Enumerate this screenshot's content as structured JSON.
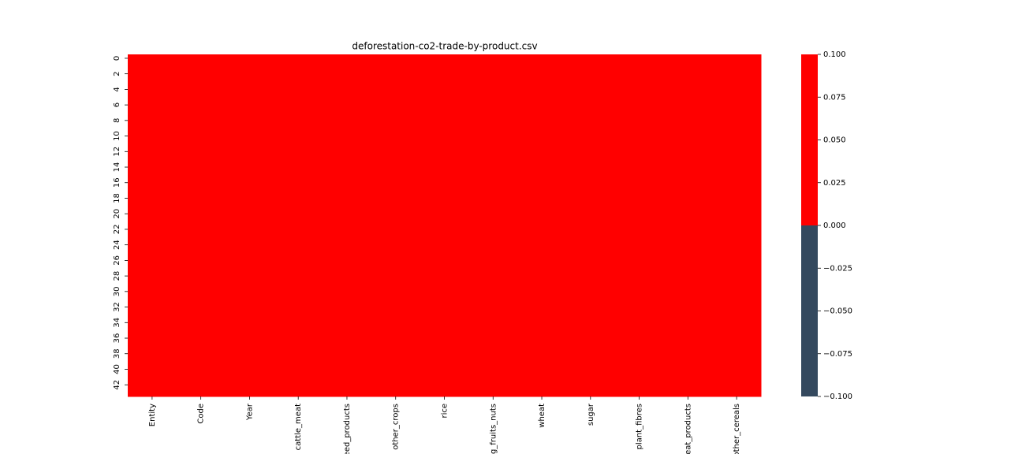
{
  "chart_data": {
    "type": "heatmap",
    "title": "deforestation-co2-trade-by-product.csv",
    "columns": [
      "Entity",
      "Code",
      "Year",
      "cattle_meat",
      "eed_products",
      "other_crops",
      "rice",
      "g_fruits_nuts",
      "wheat",
      "sugar",
      "plant_fibres",
      "eat_products",
      "other_cereals"
    ],
    "rows": [
      0,
      null,
      2,
      null,
      4,
      null,
      6,
      null,
      8,
      null,
      10,
      null,
      12,
      null,
      14,
      null,
      16,
      null,
      18,
      null,
      20,
      null,
      22,
      null,
      24,
      null,
      26,
      null,
      28,
      null,
      30,
      null,
      32,
      null,
      34,
      null,
      36,
      null,
      38,
      null,
      40,
      null,
      42,
      null
    ],
    "values": [
      [
        0,
        0,
        0,
        0,
        0,
        0,
        0,
        0,
        0,
        0,
        0,
        0,
        0
      ],
      [
        0,
        0,
        0,
        0,
        0,
        0,
        0,
        0,
        0,
        0,
        0,
        0,
        0
      ],
      [
        0,
        0,
        0,
        0,
        0,
        0,
        0,
        0,
        0,
        0,
        0,
        0,
        0
      ],
      [
        0,
        0,
        0,
        0,
        0,
        0,
        0,
        0,
        0,
        0,
        0,
        0,
        0
      ],
      [
        0,
        0,
        0,
        0,
        0,
        0,
        0,
        0,
        0,
        0,
        0,
        0,
        0
      ],
      [
        0,
        0,
        0,
        0,
        0,
        0,
        0,
        0,
        0,
        0,
        0,
        0,
        0
      ],
      [
        0,
        0,
        0,
        0,
        0,
        0,
        0,
        0,
        0,
        0,
        0,
        0,
        0
      ],
      [
        0,
        0,
        0,
        0,
        0,
        0,
        0,
        0,
        0,
        0,
        0,
        0,
        0
      ],
      [
        0,
        0,
        0,
        0,
        0,
        0,
        0,
        0,
        0,
        0,
        0,
        0,
        0
      ],
      [
        0,
        0,
        0,
        0,
        0,
        0,
        0,
        0,
        0,
        0,
        0,
        0,
        0
      ],
      [
        0,
        0,
        0,
        0,
        0,
        0,
        0,
        0,
        0,
        0,
        0,
        0,
        0
      ],
      [
        0,
        0,
        0,
        0,
        0,
        0,
        0,
        0,
        0,
        0,
        0,
        0,
        0
      ],
      [
        0,
        0,
        0,
        0,
        0,
        0,
        0,
        0,
        0,
        0,
        0,
        0,
        0
      ],
      [
        0,
        0,
        0,
        0,
        0,
        0,
        0,
        0,
        0,
        0,
        0,
        0,
        0
      ],
      [
        0,
        0,
        0,
        0,
        0,
        0,
        0,
        0,
        0,
        0,
        0,
        0,
        0
      ],
      [
        0,
        0,
        0,
        0,
        0,
        0,
        0,
        0,
        0,
        0,
        0,
        0,
        0
      ],
      [
        0,
        0,
        0,
        0,
        0,
        0,
        0,
        0,
        0,
        0,
        0,
        0,
        0
      ],
      [
        0,
        0,
        0,
        0,
        0,
        0,
        0,
        0,
        0,
        0,
        0,
        0,
        0
      ],
      [
        0,
        0,
        0,
        0,
        0,
        0,
        0,
        0,
        0,
        0,
        0,
        0,
        0
      ],
      [
        0,
        0,
        0,
        0,
        0,
        0,
        0,
        0,
        0,
        0,
        0,
        0,
        0
      ],
      [
        0,
        0,
        0,
        0,
        0,
        0,
        0,
        0,
        0,
        0,
        0,
        0,
        0
      ],
      [
        0,
        0,
        0,
        0,
        0,
        0,
        0,
        0,
        0,
        0,
        0,
        0,
        0
      ],
      [
        0,
        0,
        0,
        0,
        0,
        0,
        0,
        0,
        0,
        0,
        0,
        0,
        0
      ],
      [
        0,
        0,
        0,
        0,
        0,
        0,
        0,
        0,
        0,
        0,
        0,
        0,
        0
      ],
      [
        0,
        0,
        0,
        0,
        0,
        0,
        0,
        0,
        0,
        0,
        0,
        0,
        0
      ],
      [
        0,
        0,
        0,
        0,
        0,
        0,
        0,
        0,
        0,
        0,
        0,
        0,
        0
      ],
      [
        0,
        0,
        0,
        0,
        0,
        0,
        0,
        0,
        0,
        0,
        0,
        0,
        0
      ],
      [
        0,
        0,
        0,
        0,
        0,
        0,
        0,
        0,
        0,
        0,
        0,
        0,
        0
      ],
      [
        0,
        0,
        0,
        0,
        0,
        0,
        0,
        0,
        0,
        0,
        0,
        0,
        0
      ],
      [
        0,
        0,
        0,
        0,
        0,
        0,
        0,
        0,
        0,
        0,
        0,
        0,
        0
      ],
      [
        0,
        0,
        0,
        0,
        0,
        0,
        0,
        0,
        0,
        0,
        0,
        0,
        0
      ],
      [
        0,
        0,
        0,
        0,
        0,
        0,
        0,
        0,
        0,
        0,
        0,
        0,
        0
      ],
      [
        0,
        0,
        0,
        0,
        0,
        0,
        0,
        0,
        0,
        0,
        0,
        0,
        0
      ],
      [
        0,
        0,
        0,
        0,
        0,
        0,
        0,
        0,
        0,
        0,
        0,
        0,
        0
      ],
      [
        0,
        0,
        0,
        0,
        0,
        0,
        0,
        0,
        0,
        0,
        0,
        0,
        0
      ],
      [
        0,
        0,
        0,
        0,
        0,
        0,
        0,
        0,
        0,
        0,
        0,
        0,
        0
      ],
      [
        0,
        0,
        0,
        0,
        0,
        0,
        0,
        0,
        0,
        0,
        0,
        0,
        0
      ],
      [
        0,
        0,
        0,
        0,
        0,
        0,
        0,
        0,
        0,
        0,
        0,
        0,
        0
      ],
      [
        0,
        0,
        0,
        0,
        0,
        0,
        0,
        0,
        0,
        0,
        0,
        0,
        0
      ],
      [
        0,
        0,
        0,
        0,
        0,
        0,
        0,
        0,
        0,
        0,
        0,
        0,
        0
      ],
      [
        0,
        0,
        0,
        0,
        0,
        0,
        0,
        0,
        0,
        0,
        0,
        0,
        0
      ],
      [
        0,
        0,
        0,
        0,
        0,
        0,
        0,
        0,
        0,
        0,
        0,
        0,
        0
      ],
      [
        0,
        0,
        0,
        0,
        0,
        0,
        0,
        0,
        0,
        0,
        0,
        0,
        0
      ],
      [
        0,
        0,
        0,
        0,
        0,
        0,
        0,
        0,
        0,
        0,
        0,
        0,
        0
      ]
    ],
    "colors": [
      "#34495e",
      "#ff0000"
    ],
    "zlim": [
      -0.1,
      0.1
    ],
    "zticks": [
      {
        "value": 0.1,
        "label": "0.100"
      },
      {
        "value": 0.075,
        "label": "0.075"
      },
      {
        "value": 0.05,
        "label": "0.050"
      },
      {
        "value": 0.025,
        "label": "0.025"
      },
      {
        "value": 0,
        "label": "0.000"
      },
      {
        "value": -0.025,
        "label": "−0.025"
      },
      {
        "value": -0.05,
        "label": "−0.050"
      },
      {
        "value": -0.075,
        "label": "−0.075"
      },
      {
        "value": -0.1,
        "label": "−0.100"
      }
    ]
  }
}
